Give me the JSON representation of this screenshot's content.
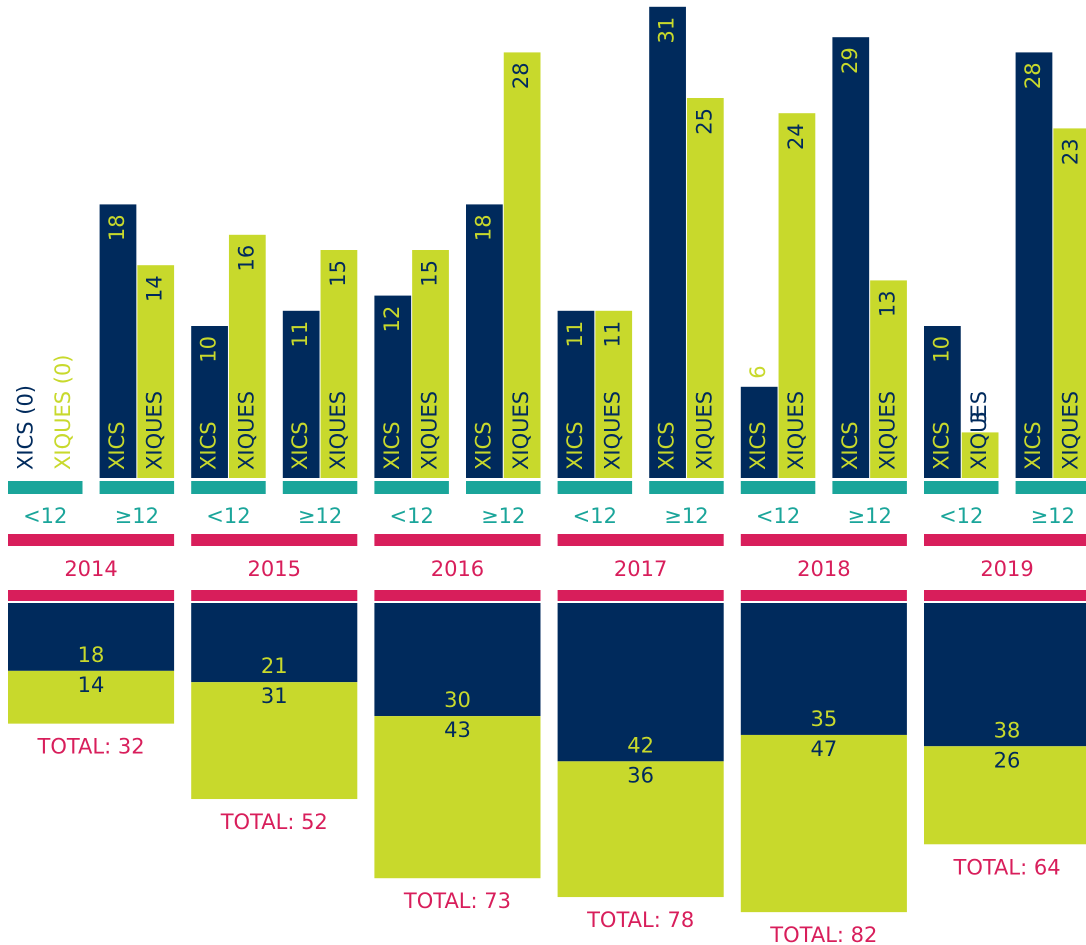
{
  "chart_data": {
    "type": "bar",
    "series": [
      {
        "name": "XICS",
        "color": "#002a5c"
      },
      {
        "name": "XIQUES",
        "color": "#c8d92c"
      }
    ],
    "years": [
      {
        "year": "2014",
        "groups": [
          {
            "name": "<12",
            "values": [
              0,
              0
            ],
            "value_labels": [
              "XICS (0)",
              "XIQUES (0)"
            ]
          },
          {
            "name": "≥12",
            "values": [
              18,
              14
            ]
          }
        ],
        "totals": [
          18,
          14
        ],
        "total": 32,
        "total_label": "TOTAL: 32"
      },
      {
        "year": "2015",
        "groups": [
          {
            "name": "<12",
            "values": [
              10,
              16
            ]
          },
          {
            "name": "≥12",
            "values": [
              11,
              15
            ]
          }
        ],
        "totals": [
          21,
          31
        ],
        "total": 52,
        "total_label": "TOTAL: 52"
      },
      {
        "year": "2016",
        "groups": [
          {
            "name": "<12",
            "values": [
              12,
              15
            ]
          },
          {
            "name": "≥12",
            "values": [
              18,
              28
            ]
          }
        ],
        "totals": [
          30,
          43
        ],
        "total": 73,
        "total_label": "TOTAL: 73"
      },
      {
        "year": "2017",
        "groups": [
          {
            "name": "<12",
            "values": [
              11,
              11
            ]
          },
          {
            "name": "≥12",
            "values": [
              31,
              25
            ]
          }
        ],
        "totals": [
          42,
          36
        ],
        "total": 78,
        "total_label": "TOTAL: 78"
      },
      {
        "year": "2018",
        "groups": [
          {
            "name": "<12",
            "values": [
              6,
              24
            ]
          },
          {
            "name": "≥12",
            "values": [
              29,
              13
            ]
          }
        ],
        "totals": [
          35,
          47
        ],
        "total": 82,
        "total_label": "TOTAL: 82"
      },
      {
        "year": "2019",
        "groups": [
          {
            "name": "<12",
            "values": [
              10,
              3
            ]
          },
          {
            "name": "≥12",
            "values": [
              28,
              23
            ]
          }
        ],
        "totals": [
          38,
          26
        ],
        "total": 64,
        "total_label": "TOTAL: 64"
      }
    ],
    "age_color": "#1aa59a",
    "year_color": "#d81e5b"
  }
}
